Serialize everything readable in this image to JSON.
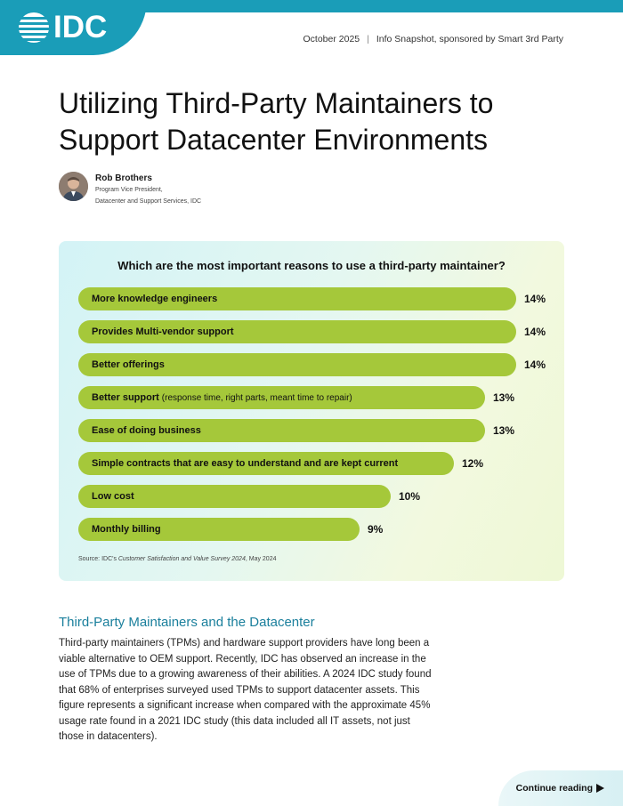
{
  "header": {
    "logo_text": "IDC",
    "date": "October 2025",
    "separator": "|",
    "doc_type": "Info Snapshot, sponsored by Smart 3rd Party",
    "brand_color": "#1a9db8"
  },
  "title": "Utilizing Third-Party Maintainers to Support Datacenter Environments",
  "author": {
    "name": "Rob Brothers",
    "role_line1": "Program Vice President,",
    "role_line2": "Datacenter and Support Services, IDC"
  },
  "chart_data": {
    "type": "bar",
    "orientation": "horizontal",
    "title": "Which are the most important reasons to use a third-party maintainer?",
    "categories": [
      "More knowledge engineers",
      "Provides Multi-vendor support",
      "Better offerings",
      "Better support",
      "Ease of doing business",
      "Simple contracts that are easy to understand and are kept current",
      "Low cost",
      "Monthly billing"
    ],
    "category_notes": [
      "",
      "",
      "",
      "(response time, right parts, meant time to repair)",
      "",
      "",
      "",
      ""
    ],
    "values": [
      14,
      14,
      14,
      13,
      13,
      12,
      10,
      9
    ],
    "labels": [
      "14%",
      "14%",
      "14%",
      "13%",
      "13%",
      "12%",
      "10%",
      "9%"
    ],
    "unit": "%",
    "bar_color": "#a5c83a",
    "xlim": [
      0,
      14
    ]
  },
  "source": {
    "prefix": "Source: IDC's ",
    "survey": "Customer Satisfaction and Value Survey 2024",
    "suffix": ", May 2024"
  },
  "section": {
    "heading": "Third-Party Maintainers and the Datacenter",
    "body": "Third-party maintainers (TPMs) and hardware support providers have long been a viable alternative to OEM support. Recently, IDC has observed an increase in the use of TPMs due to a growing awareness of their abilities. A 2024 IDC study found that 68% of enterprises surveyed used TPMs to support datacenter assets. This figure represents a significant increase when compared with the approximate 45% usage rate found in a 2021 IDC study (this data included all IT assets, not just those in datacenters)."
  },
  "footer": {
    "continue_label": "Continue reading"
  }
}
